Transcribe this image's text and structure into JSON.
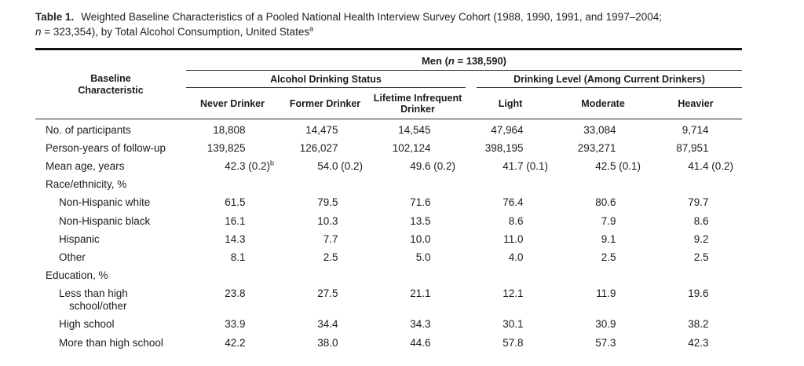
{
  "title": {
    "label": "Table 1.",
    "line1": "Weighted Baseline Characteristics of a Pooled National Health Interview Survey Cohort (1988, 1990, 1991, and 1997–2004;",
    "line2_italic": "n",
    "line2_text": " = 323,354), by Total Alcohol Consumption, United States",
    "line2_sup": "a"
  },
  "table": {
    "row_header": "Baseline Characteristic",
    "span_header": {
      "pre": "Men (",
      "italic": "n",
      "post": " = 138,590)"
    },
    "group_headers": [
      "Alcohol Drinking Status",
      "Drinking Level (Among Current Drinkers)"
    ],
    "column_headers": [
      "Never Drinker",
      "Former Drinker",
      "Lifetime Infrequent Drinker",
      "Light",
      "Moderate",
      "Heavier"
    ],
    "rows": [
      {
        "label": "No. of participants",
        "indent": 0,
        "section": false,
        "wrap": false,
        "values": [
          "18,808",
          "14,475",
          "14,545",
          "47,964",
          "33,084",
          "9,714"
        ]
      },
      {
        "label": "Person-years of follow-up",
        "indent": 0,
        "section": false,
        "wrap": false,
        "values": [
          "139,825",
          "126,027",
          "102,124",
          "398,195",
          "293,271",
          "87,951"
        ]
      },
      {
        "label": "Mean age, years",
        "indent": 0,
        "section": false,
        "wrap": false,
        "values": [
          "42.3 (0.2)^b",
          "54.0 (0.2)",
          "49.6 (0.2)",
          "41.7 (0.1)",
          "42.5 (0.1)",
          "41.4 (0.2)"
        ]
      },
      {
        "label": "Race/ethnicity, %",
        "indent": 0,
        "section": true,
        "wrap": false,
        "values": []
      },
      {
        "label": "Non-Hispanic white",
        "indent": 1,
        "section": false,
        "wrap": false,
        "values": [
          "61.5",
          "79.5",
          "71.6",
          "76.4",
          "80.6",
          "79.7"
        ]
      },
      {
        "label": "Non-Hispanic black",
        "indent": 1,
        "section": false,
        "wrap": false,
        "values": [
          "16.1",
          "10.3",
          "13.5",
          "8.6",
          "7.9",
          "8.6"
        ]
      },
      {
        "label": "Hispanic",
        "indent": 1,
        "section": false,
        "wrap": false,
        "values": [
          "14.3",
          "7.7",
          "10.0",
          "11.0",
          "9.1",
          "9.2"
        ]
      },
      {
        "label": "Other",
        "indent": 1,
        "section": false,
        "wrap": false,
        "values": [
          "8.1",
          "2.5",
          "5.0",
          "4.0",
          "2.5",
          "2.5"
        ]
      },
      {
        "label": "Education, %",
        "indent": 0,
        "section": true,
        "wrap": false,
        "values": []
      },
      {
        "label": "Less than high school/other",
        "indent": 1,
        "section": false,
        "wrap": true,
        "values": [
          "23.8",
          "27.5",
          "21.1",
          "12.1",
          "11.9",
          "19.6"
        ]
      },
      {
        "label": "High school",
        "indent": 1,
        "section": false,
        "wrap": false,
        "values": [
          "33.9",
          "34.4",
          "34.3",
          "30.1",
          "30.9",
          "38.2"
        ]
      },
      {
        "label": "More than high school",
        "indent": 1,
        "section": false,
        "wrap": false,
        "values": [
          "42.2",
          "38.0",
          "44.6",
          "57.8",
          "57.3",
          "42.3"
        ]
      }
    ]
  }
}
